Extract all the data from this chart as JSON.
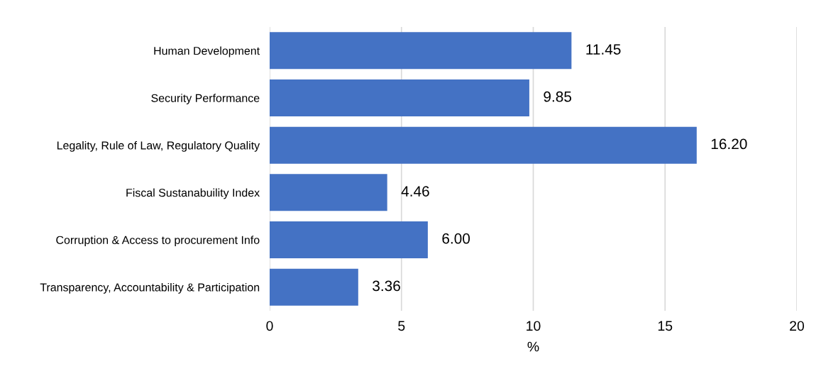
{
  "chart_data": {
    "type": "bar",
    "orientation": "horizontal",
    "categories": [
      "Human Development",
      "Security Performance",
      "Legality, Rule of Law, Regulatory Quality",
      "Fiscal Sustanabuility Index",
      "Corruption & Access to procurement Info",
      "Transparency, Accountability & Participation"
    ],
    "values": [
      11.45,
      9.85,
      16.2,
      4.46,
      6.0,
      3.36
    ],
    "value_labels": [
      "11.45",
      "9.85",
      "16.20",
      "4.46",
      "6.00",
      "3.36"
    ],
    "color": "#4472c4",
    "xlim": [
      0,
      20
    ],
    "xticks": [
      0,
      5,
      10,
      15,
      20
    ],
    "xlabel": "%",
    "grid": "x",
    "legend": false
  }
}
